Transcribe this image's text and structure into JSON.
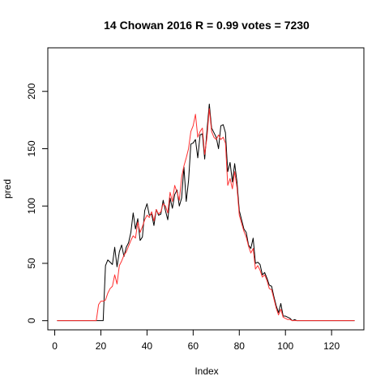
{
  "chart_data": {
    "type": "line",
    "title": "14 Chowan 2016 R = 0.99 votes = 7230",
    "xlabel": "Index",
    "ylabel": "pred",
    "xlim": [
      -3,
      134
    ],
    "ylim": [
      -8,
      238
    ],
    "xticks": [
      0,
      20,
      40,
      60,
      80,
      100,
      120
    ],
    "yticks": [
      0,
      50,
      100,
      150,
      200
    ],
    "grid": false,
    "legend": "none",
    "series": [
      {
        "color": "#000000",
        "values": [
          0,
          0,
          0,
          0,
          0,
          0,
          0,
          0,
          0,
          0,
          0,
          0,
          0,
          0,
          0,
          0,
          0,
          0,
          0,
          0,
          0,
          48,
          53,
          51,
          49,
          64,
          47,
          60,
          66,
          56,
          64,
          68,
          77,
          94,
          80,
          89,
          70,
          73,
          96,
          102,
          92,
          93,
          83,
          97,
          92,
          93,
          105,
          96,
          88,
          107,
          98,
          110,
          114,
          100,
          107,
          134,
          104,
          122,
          154,
          155,
          158,
          142,
          162,
          163,
          141,
          166,
          189,
          168,
          164,
          160,
          150,
          170,
          171,
          164,
          130,
          138,
          121,
          137,
          121,
          96,
          88,
          80,
          77,
          66,
          63,
          72,
          50,
          51,
          49,
          40,
          42,
          37,
          31,
          30,
          21,
          13,
          7,
          15,
          4,
          4,
          3,
          2,
          0,
          1,
          0,
          0,
          0,
          0,
          0,
          0,
          0,
          0,
          0,
          0,
          0,
          0,
          0,
          0,
          0,
          0,
          0,
          0,
          0,
          0,
          0,
          0,
          0,
          0,
          0,
          0
        ]
      },
      {
        "color": "#ff3030",
        "values": [
          0,
          0,
          0,
          0,
          0,
          0,
          0,
          0,
          0,
          0,
          0,
          0,
          0,
          0,
          0,
          0,
          0,
          0,
          14,
          17,
          17,
          18,
          24,
          28,
          30,
          40,
          32,
          48,
          52,
          57,
          60,
          65,
          70,
          74,
          72,
          86,
          77,
          82,
          88,
          92,
          90,
          95,
          87,
          97,
          93,
          95,
          102,
          100,
          94,
          112,
          104,
          118,
          112,
          105,
          125,
          135,
          142,
          150,
          165,
          170,
          180,
          160,
          165,
          168,
          145,
          160,
          185,
          165,
          160,
          158,
          162,
          158,
          160,
          155,
          118,
          124,
          115,
          130,
          116,
          92,
          85,
          78,
          73,
          65,
          59,
          63,
          45,
          48,
          44,
          38,
          40,
          35,
          28,
          27,
          19,
          11,
          5,
          10,
          3,
          2,
          1,
          1,
          0,
          0,
          0,
          0,
          0,
          0,
          0,
          0,
          0,
          0,
          0,
          0,
          0,
          0,
          0,
          0,
          0,
          0,
          0,
          0,
          0,
          0,
          0,
          0,
          0,
          0,
          0,
          0
        ]
      }
    ]
  }
}
